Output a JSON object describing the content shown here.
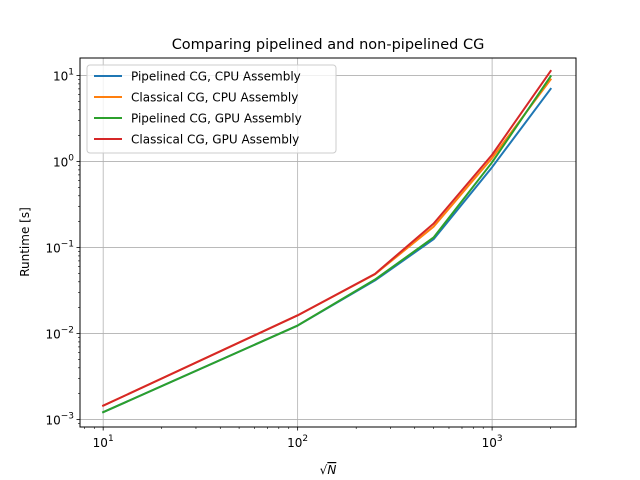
{
  "chart_data": {
    "type": "line",
    "title": "Comparing pipelined and non-pipelined CG",
    "xlabel": "√N",
    "ylabel": "Runtime [s]",
    "xscale": "log",
    "yscale": "log",
    "xlim": [
      7.6,
      2700
    ],
    "ylim": [
      0.00082,
      16
    ],
    "grid": true,
    "legend_position": "top-left",
    "x_ticks": [
      {
        "value": 10,
        "base": "10",
        "exp": "1"
      },
      {
        "value": 100,
        "base": "10",
        "exp": "2"
      },
      {
        "value": 1000,
        "base": "10",
        "exp": "3"
      }
    ],
    "y_ticks": [
      {
        "value": 0.001,
        "base": "10",
        "exp": "−3"
      },
      {
        "value": 0.01,
        "base": "10",
        "exp": "−2"
      },
      {
        "value": 0.1,
        "base": "10",
        "exp": "−1"
      },
      {
        "value": 1,
        "base": "10",
        "exp": "0"
      },
      {
        "value": 10,
        "base": "10",
        "exp": "1"
      }
    ],
    "x": [
      10,
      100,
      250,
      500,
      1000,
      2000
    ],
    "series": [
      {
        "name": "Pipelined CG, CPU Assembly",
        "color": "#1f77b4",
        "values": [
          0.00122,
          0.0124,
          0.0415,
          0.125,
          0.86,
          7.0
        ]
      },
      {
        "name": "Classical CG, CPU Assembly",
        "color": "#ff7f0e",
        "values": [
          0.00145,
          0.0163,
          0.049,
          0.175,
          1.1,
          9.0
        ]
      },
      {
        "name": "Pipelined CG, GPU Assembly",
        "color": "#2ca02c",
        "values": [
          0.00122,
          0.0124,
          0.0425,
          0.131,
          0.98,
          9.8
        ]
      },
      {
        "name": "Classical CG, GPU Assembly",
        "color": "#d62728",
        "values": [
          0.00145,
          0.0163,
          0.0495,
          0.19,
          1.2,
          11.3
        ]
      }
    ]
  }
}
